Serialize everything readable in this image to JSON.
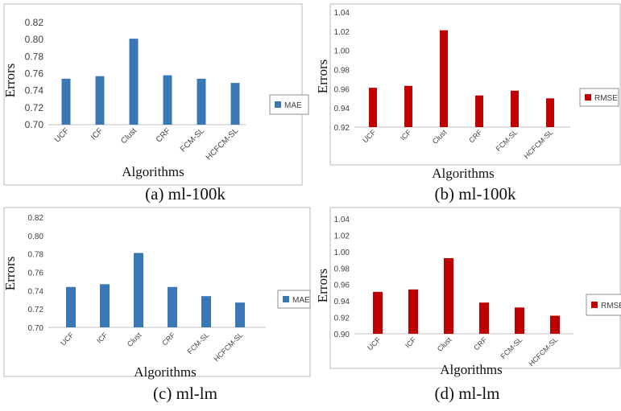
{
  "chart_data": [
    {
      "type": "bar",
      "categories": [
        "UCF",
        "ICF",
        "Clust",
        "CRF",
        "FCM-SL",
        "HCFCM-SL"
      ],
      "series": [
        {
          "name": "MAE",
          "values": [
            0.754,
            0.757,
            0.801,
            0.758,
            0.754,
            0.749
          ]
        }
      ],
      "ylim": [
        0.7,
        0.82
      ],
      "yticks": [
        "0.70",
        "0.72",
        "0.74",
        "0.76",
        "0.78",
        "0.80",
        "0.82"
      ],
      "xlabel": "Algorithms",
      "ylabel": "Errors",
      "caption": "(a) ml-100k",
      "color": "#3a78b5",
      "grid": false,
      "legend_position": "right"
    },
    {
      "type": "bar",
      "categories": [
        "UCF",
        "ICF",
        "Clust",
        "CRF",
        "FCM-SL",
        "HCFCM-SL"
      ],
      "series": [
        {
          "name": "RMSE",
          "values": [
            0.961,
            0.963,
            1.021,
            0.953,
            0.958,
            0.95
          ]
        }
      ],
      "ylim": [
        0.92,
        1.04
      ],
      "yticks": [
        "0.92",
        "0.94",
        "0.96",
        "0.98",
        "1.00",
        "1.02",
        "1.04"
      ],
      "xlabel": "Algorithms",
      "ylabel": "Errors",
      "caption": "(b) ml-100k",
      "color": "#c00000",
      "grid": false,
      "legend_position": "right"
    },
    {
      "type": "bar",
      "categories": [
        "UCF",
        "ICF",
        "Clust",
        "CRF",
        "FCM-SL",
        "HCFCM-SL"
      ],
      "series": [
        {
          "name": "MAE",
          "values": [
            0.744,
            0.747,
            0.781,
            0.744,
            0.734,
            0.727
          ]
        }
      ],
      "ylim": [
        0.7,
        0.82
      ],
      "yticks": [
        "0.70",
        "0.72",
        "0.74",
        "0.76",
        "0.78",
        "0.80",
        "0.82"
      ],
      "xlabel": "Algorithms",
      "ylabel": "Errors",
      "caption": "(c) ml-lm",
      "color": "#3a78b5",
      "grid": false,
      "legend_position": "right"
    },
    {
      "type": "bar",
      "categories": [
        "UCF",
        "ICF",
        "Clust",
        "CRF",
        "FCM-SL",
        "HCFCM-SL"
      ],
      "series": [
        {
          "name": "RMSE",
          "values": [
            0.951,
            0.954,
            0.992,
            0.938,
            0.932,
            0.922
          ]
        }
      ],
      "ylim": [
        0.9,
        1.04
      ],
      "yticks": [
        "0.90",
        "0.92",
        "0.94",
        "0.96",
        "0.98",
        "1.00",
        "1.02",
        "1.04"
      ],
      "xlabel": "Algorithms",
      "ylabel": "Errors",
      "caption": "(d) ml-lm",
      "color": "#c00000",
      "grid": false,
      "legend_position": "right"
    }
  ]
}
